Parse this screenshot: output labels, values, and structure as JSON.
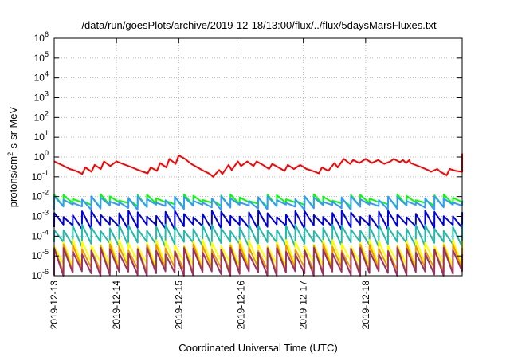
{
  "chart_data": {
    "type": "line",
    "title": "/data/run/goesPlots/archive/2019-12-18/13:00/flux/../flux/5daysMarsFluxes.txt",
    "xlabel": "Coordinated Universal Time (UTC)",
    "ylabel": {
      "prefix": "protons/cm",
      "sup": "2",
      "suffix": "-s-sr-MeV"
    },
    "yscale": "log",
    "ylim": [
      1e-06,
      1000000.0
    ],
    "xlim": [
      0,
      6.55
    ],
    "grid": true,
    "legend": "none",
    "x_ticks": [
      {
        "x": 0,
        "label": "2019-12-13"
      },
      {
        "x": 1,
        "label": "2019-12-14"
      },
      {
        "x": 2,
        "label": "2019-12-15"
      },
      {
        "x": 3,
        "label": "2019-12-16"
      },
      {
        "x": 4,
        "label": "2019-12-17"
      },
      {
        "x": 5,
        "label": "2019-12-18"
      }
    ],
    "y_ticks": [
      {
        "value": 1e-06,
        "base": "10",
        "exp": "-6"
      },
      {
        "value": 1e-05,
        "base": "10",
        "exp": "-5"
      },
      {
        "value": 0.0001,
        "base": "10",
        "exp": "-4"
      },
      {
        "value": 0.001,
        "base": "10",
        "exp": "-3"
      },
      {
        "value": 0.01,
        "base": "10",
        "exp": "-2"
      },
      {
        "value": 0.1,
        "base": "10",
        "exp": "-1"
      },
      {
        "value": 1,
        "base": "10",
        "exp": "0"
      },
      {
        "value": 10.0,
        "base": "10",
        "exp": "1"
      },
      {
        "value": 100.0,
        "base": "10",
        "exp": "2"
      },
      {
        "value": 1000.0,
        "base": "10",
        "exp": "3"
      },
      {
        "value": 10000.0,
        "base": "10",
        "exp": "4"
      },
      {
        "value": 100000.0,
        "base": "10",
        "exp": "5"
      },
      {
        "value": 1000000.0,
        "base": "10",
        "exp": "6"
      }
    ],
    "series": [
      {
        "color": "#ff0000",
        "x": [
          0,
          0.12,
          0.25,
          0.35,
          0.45,
          0.5,
          0.6,
          0.65,
          0.75,
          0.8,
          0.9,
          1.0,
          1.1,
          1.25,
          1.35,
          1.5,
          1.55,
          1.65,
          1.7,
          1.8,
          1.85,
          1.95,
          2.0,
          2.1,
          2.2,
          2.3,
          2.4,
          2.5,
          2.55,
          2.65,
          2.7,
          2.8,
          2.85,
          2.95,
          3.0,
          3.1,
          3.2,
          3.25,
          3.35,
          3.45,
          3.5,
          3.6,
          3.7,
          3.75,
          3.85,
          3.95,
          4.05,
          4.15,
          4.25,
          4.3,
          4.4,
          4.5,
          4.55,
          4.65,
          4.75,
          4.8,
          4.9,
          5.0,
          5.1,
          5.2,
          5.3,
          5.4,
          5.45,
          5.55,
          5.6,
          5.65,
          5.7,
          5.72,
          5.9,
          6.0,
          6.05,
          6.15,
          6.2,
          6.3,
          6.35,
          6.45,
          6.55,
          6.55
        ],
        "y": [
          0.6,
          0.4,
          0.25,
          0.2,
          0.14,
          0.3,
          0.18,
          0.4,
          0.25,
          0.6,
          0.35,
          0.6,
          0.45,
          0.3,
          0.22,
          0.15,
          0.3,
          0.2,
          0.5,
          0.3,
          0.8,
          0.45,
          1.2,
          0.8,
          0.45,
          0.3,
          0.2,
          0.14,
          0.1,
          0.22,
          0.14,
          0.4,
          0.22,
          0.6,
          0.35,
          0.6,
          0.35,
          0.6,
          0.4,
          0.25,
          0.45,
          0.3,
          0.2,
          0.4,
          0.25,
          0.4,
          0.25,
          0.2,
          0.15,
          0.3,
          0.2,
          0.5,
          0.3,
          0.8,
          0.45,
          0.7,
          0.5,
          0.8,
          0.5,
          0.7,
          0.45,
          0.6,
          0.8,
          0.55,
          0.7,
          0.5,
          0.7,
          0.5,
          0.3,
          0.22,
          0.18,
          0.25,
          0.18,
          0.12,
          0.25,
          0.2,
          0.18,
          1.5
        ]
      },
      {
        "color": "#00ff00",
        "sawtooth": true,
        "levels": [
          0.004,
          0.01,
          0.003,
          0.008,
          0.0025,
          0.006,
          0.002,
          0.005,
          0.002,
          0.004
        ]
      },
      {
        "color": "#3399ff",
        "sawtooth": true,
        "levels": [
          0.003,
          0.008,
          0.002,
          0.006,
          0.0018,
          0.005,
          0.0015,
          0.004,
          0.0015,
          0.0035
        ]
      },
      {
        "color": "#0000dd",
        "sawtooth": true,
        "levels": [
          0.0003,
          0.0015,
          0.0003,
          0.001,
          0.00025,
          0.0009,
          0.0002,
          0.0008,
          0.0002,
          0.0007
        ]
      },
      {
        "color": "#22bbaa",
        "sawtooth": true,
        "levels": [
          4e-05,
          0.0003,
          5e-05,
          0.0002,
          4e-05,
          0.0002,
          4e-05,
          0.00015,
          4e-05,
          0.00012
        ]
      },
      {
        "color": "#ffff00",
        "sawtooth": true,
        "levels": [
          4e-06,
          5e-05,
          5e-06,
          4e-05,
          4e-06,
          4e-05,
          4e-06,
          3e-05,
          4e-06,
          3e-05
        ]
      },
      {
        "color": "#ee9900",
        "sawtooth": true,
        "levels": [
          2e-06,
          3e-05,
          3e-06,
          2e-05,
          2e-06,
          2e-05,
          2e-06,
          1.5e-05,
          2e-06,
          1.5e-05
        ]
      },
      {
        "color": "#993366",
        "sawtooth": true,
        "levels": [
          1.3e-06,
          2e-05,
          1.5e-06,
          1.5e-05,
          1.3e-06,
          1.2e-05,
          1.2e-06,
          1e-05,
          1.2e-06,
          1e-05
        ]
      }
    ]
  }
}
